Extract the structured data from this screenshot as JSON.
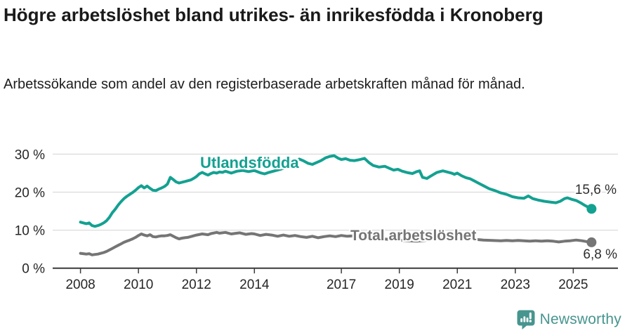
{
  "header": {
    "title": "Högre arbetslöshet bland utrikes- än inrikesfödda i Kronoberg",
    "subtitle": "Arbetssökande som andel av den registerbaserade arbetskraften månad för månad."
  },
  "chart_data": {
    "type": "line",
    "title": "Högre arbetslöshet bland utrikes- än inrikesfödda i Kronoberg",
    "subtitle": "Arbetssökande som andel av den registerbaserade arbetskraften månad för månad.",
    "xlabel": "",
    "ylabel": "",
    "unit": "%",
    "grid": true,
    "xlim": [
      2007.5,
      2026.1
    ],
    "ylim": [
      0,
      31.5
    ],
    "x_axis": {
      "ticks": [
        2008,
        2010,
        2012,
        2014,
        2017,
        2019,
        2021,
        2023,
        2025
      ]
    },
    "y_axis": {
      "ticks": [
        0,
        10,
        20,
        30
      ],
      "suffix": " %"
    },
    "series": [
      {
        "name": "Utlandsfödda",
        "color": "#13a191",
        "end_value": 15.6,
        "end_label": "15,6 %",
        "points": [
          [
            2008.0,
            12.1
          ],
          [
            2008.1,
            11.9
          ],
          [
            2008.2,
            11.7
          ],
          [
            2008.3,
            11.9
          ],
          [
            2008.4,
            11.2
          ],
          [
            2008.5,
            11.0
          ],
          [
            2008.6,
            11.2
          ],
          [
            2008.7,
            11.5
          ],
          [
            2008.8,
            11.9
          ],
          [
            2008.9,
            12.5
          ],
          [
            2009.0,
            13.4
          ],
          [
            2009.1,
            14.6
          ],
          [
            2009.2,
            15.5
          ],
          [
            2009.3,
            16.6
          ],
          [
            2009.4,
            17.5
          ],
          [
            2009.5,
            18.3
          ],
          [
            2009.6,
            18.9
          ],
          [
            2009.7,
            19.4
          ],
          [
            2009.8,
            19.9
          ],
          [
            2009.9,
            20.5
          ],
          [
            2010.0,
            21.2
          ],
          [
            2010.1,
            21.7
          ],
          [
            2010.2,
            21.1
          ],
          [
            2010.3,
            21.6
          ],
          [
            2010.4,
            21.0
          ],
          [
            2010.5,
            20.5
          ],
          [
            2010.6,
            20.4
          ],
          [
            2010.7,
            20.8
          ],
          [
            2010.8,
            21.1
          ],
          [
            2010.9,
            21.5
          ],
          [
            2011.0,
            22.1
          ],
          [
            2011.1,
            23.9
          ],
          [
            2011.2,
            23.3
          ],
          [
            2011.3,
            22.7
          ],
          [
            2011.4,
            22.4
          ],
          [
            2011.5,
            22.6
          ],
          [
            2011.6,
            22.8
          ],
          [
            2011.7,
            23.0
          ],
          [
            2011.8,
            23.2
          ],
          [
            2011.9,
            23.6
          ],
          [
            2012.0,
            24.1
          ],
          [
            2012.1,
            24.8
          ],
          [
            2012.2,
            25.2
          ],
          [
            2012.3,
            24.8
          ],
          [
            2012.4,
            24.5
          ],
          [
            2012.5,
            24.9
          ],
          [
            2012.6,
            25.2
          ],
          [
            2012.7,
            25.0
          ],
          [
            2012.8,
            25.3
          ],
          [
            2012.9,
            25.2
          ],
          [
            2013.0,
            25.5
          ],
          [
            2013.2,
            25.0
          ],
          [
            2013.4,
            25.5
          ],
          [
            2013.6,
            25.7
          ],
          [
            2013.8,
            25.4
          ],
          [
            2014.0,
            25.7
          ],
          [
            2014.2,
            25.1
          ],
          [
            2014.35,
            24.8
          ],
          [
            2014.5,
            25.2
          ],
          [
            2014.7,
            25.6
          ],
          [
            2014.9,
            26.0
          ],
          [
            2015.0,
            26.3
          ],
          [
            2015.2,
            27.2
          ],
          [
            2015.4,
            28.1
          ],
          [
            2015.55,
            28.7
          ],
          [
            2015.7,
            28.2
          ],
          [
            2015.85,
            27.6
          ],
          [
            2016.0,
            27.3
          ],
          [
            2016.15,
            27.8
          ],
          [
            2016.3,
            28.3
          ],
          [
            2016.45,
            29.0
          ],
          [
            2016.6,
            29.4
          ],
          [
            2016.75,
            29.6
          ],
          [
            2016.9,
            28.9
          ],
          [
            2017.0,
            28.6
          ],
          [
            2017.15,
            28.8
          ],
          [
            2017.3,
            28.4
          ],
          [
            2017.45,
            28.3
          ],
          [
            2017.6,
            28.5
          ],
          [
            2017.8,
            28.9
          ],
          [
            2017.95,
            27.8
          ],
          [
            2018.1,
            27.0
          ],
          [
            2018.3,
            26.6
          ],
          [
            2018.5,
            26.8
          ],
          [
            2018.65,
            26.3
          ],
          [
            2018.8,
            25.8
          ],
          [
            2018.95,
            26.0
          ],
          [
            2019.1,
            25.5
          ],
          [
            2019.3,
            25.1
          ],
          [
            2019.45,
            24.9
          ],
          [
            2019.6,
            25.4
          ],
          [
            2019.7,
            25.6
          ],
          [
            2019.8,
            23.9
          ],
          [
            2019.95,
            23.6
          ],
          [
            2020.1,
            24.3
          ],
          [
            2020.3,
            25.2
          ],
          [
            2020.5,
            25.6
          ],
          [
            2020.65,
            25.3
          ],
          [
            2020.8,
            25.0
          ],
          [
            2020.9,
            24.7
          ],
          [
            2021.0,
            25.0
          ],
          [
            2021.15,
            24.3
          ],
          [
            2021.3,
            23.8
          ],
          [
            2021.45,
            23.5
          ],
          [
            2021.6,
            22.9
          ],
          [
            2021.75,
            22.3
          ],
          [
            2021.9,
            21.7
          ],
          [
            2022.1,
            20.9
          ],
          [
            2022.3,
            20.4
          ],
          [
            2022.5,
            19.8
          ],
          [
            2022.7,
            19.4
          ],
          [
            2022.9,
            18.8
          ],
          [
            2023.1,
            18.5
          ],
          [
            2023.3,
            18.4
          ],
          [
            2023.45,
            19.0
          ],
          [
            2023.6,
            18.3
          ],
          [
            2023.8,
            17.9
          ],
          [
            2024.0,
            17.6
          ],
          [
            2024.2,
            17.4
          ],
          [
            2024.4,
            17.2
          ],
          [
            2024.55,
            17.6
          ],
          [
            2024.7,
            18.3
          ],
          [
            2024.8,
            18.5
          ],
          [
            2024.95,
            18.1
          ],
          [
            2025.1,
            17.8
          ],
          [
            2025.25,
            17.2
          ],
          [
            2025.4,
            16.5
          ],
          [
            2025.55,
            15.9
          ],
          [
            2025.63,
            15.6
          ]
        ]
      },
      {
        "name": "Total arbetslöshet",
        "color": "#757575",
        "end_value": 6.8,
        "end_label": "6,8 %",
        "points": [
          [
            2008.0,
            3.9
          ],
          [
            2008.1,
            3.8
          ],
          [
            2008.2,
            3.7
          ],
          [
            2008.3,
            3.8
          ],
          [
            2008.4,
            3.5
          ],
          [
            2008.5,
            3.6
          ],
          [
            2008.6,
            3.7
          ],
          [
            2008.7,
            3.9
          ],
          [
            2008.8,
            4.1
          ],
          [
            2008.9,
            4.4
          ],
          [
            2009.0,
            4.8
          ],
          [
            2009.1,
            5.2
          ],
          [
            2009.2,
            5.6
          ],
          [
            2009.3,
            6.0
          ],
          [
            2009.4,
            6.4
          ],
          [
            2009.5,
            6.8
          ],
          [
            2009.6,
            7.1
          ],
          [
            2009.7,
            7.4
          ],
          [
            2009.8,
            7.7
          ],
          [
            2009.9,
            8.1
          ],
          [
            2010.0,
            8.6
          ],
          [
            2010.1,
            9.0
          ],
          [
            2010.2,
            8.7
          ],
          [
            2010.3,
            8.5
          ],
          [
            2010.4,
            8.8
          ],
          [
            2010.5,
            8.3
          ],
          [
            2010.6,
            8.2
          ],
          [
            2010.7,
            8.4
          ],
          [
            2010.8,
            8.5
          ],
          [
            2010.9,
            8.5
          ],
          [
            2011.0,
            8.6
          ],
          [
            2011.1,
            8.8
          ],
          [
            2011.2,
            8.4
          ],
          [
            2011.3,
            8.0
          ],
          [
            2011.4,
            7.7
          ],
          [
            2011.5,
            7.9
          ],
          [
            2011.6,
            8.0
          ],
          [
            2011.7,
            8.1
          ],
          [
            2011.8,
            8.3
          ],
          [
            2011.9,
            8.5
          ],
          [
            2012.0,
            8.7
          ],
          [
            2012.2,
            9.0
          ],
          [
            2012.4,
            8.8
          ],
          [
            2012.5,
            9.1
          ],
          [
            2012.7,
            9.4
          ],
          [
            2012.8,
            9.2
          ],
          [
            2013.0,
            9.4
          ],
          [
            2013.2,
            9.0
          ],
          [
            2013.4,
            9.2
          ],
          [
            2013.5,
            9.3
          ],
          [
            2013.7,
            8.9
          ],
          [
            2013.9,
            9.1
          ],
          [
            2014.0,
            9.0
          ],
          [
            2014.2,
            8.6
          ],
          [
            2014.4,
            8.9
          ],
          [
            2014.6,
            8.7
          ],
          [
            2014.8,
            8.4
          ],
          [
            2015.0,
            8.7
          ],
          [
            2015.2,
            8.4
          ],
          [
            2015.4,
            8.6
          ],
          [
            2015.6,
            8.3
          ],
          [
            2015.8,
            8.1
          ],
          [
            2016.0,
            8.4
          ],
          [
            2016.2,
            8.0
          ],
          [
            2016.4,
            8.3
          ],
          [
            2016.6,
            8.5
          ],
          [
            2016.8,
            8.3
          ],
          [
            2017.0,
            8.6
          ],
          [
            2017.2,
            8.4
          ],
          [
            2017.4,
            8.5
          ],
          [
            2017.6,
            8.3
          ],
          [
            2017.8,
            8.1
          ],
          [
            2018.0,
            8.0
          ],
          [
            2018.3,
            7.8
          ],
          [
            2018.6,
            7.6
          ],
          [
            2019.0,
            7.4
          ],
          [
            2019.3,
            7.2
          ],
          [
            2019.6,
            7.1
          ],
          [
            2019.9,
            7.3
          ],
          [
            2020.2,
            8.0
          ],
          [
            2020.4,
            8.6
          ],
          [
            2020.6,
            8.5
          ],
          [
            2020.8,
            8.3
          ],
          [
            2021.0,
            8.2
          ],
          [
            2021.3,
            7.9
          ],
          [
            2021.6,
            7.6
          ],
          [
            2021.9,
            7.4
          ],
          [
            2022.2,
            7.3
          ],
          [
            2022.5,
            7.2
          ],
          [
            2022.7,
            7.3
          ],
          [
            2022.9,
            7.2
          ],
          [
            2023.1,
            7.3
          ],
          [
            2023.3,
            7.2
          ],
          [
            2023.5,
            7.1
          ],
          [
            2023.7,
            7.2
          ],
          [
            2023.9,
            7.1
          ],
          [
            2024.1,
            7.2
          ],
          [
            2024.3,
            7.1
          ],
          [
            2024.5,
            6.9
          ],
          [
            2024.7,
            7.1
          ],
          [
            2024.9,
            7.2
          ],
          [
            2025.1,
            7.4
          ],
          [
            2025.3,
            7.2
          ],
          [
            2025.45,
            7.0
          ],
          [
            2025.63,
            6.8
          ]
        ]
      }
    ],
    "legend_position": "inline"
  },
  "footer": {
    "brand": "Newsworthy"
  },
  "colors": {
    "teal": "#13a191",
    "gray": "#757575",
    "grid": "#dbdbdb",
    "axis": "#3a3a3a",
    "tick_text": "#262626",
    "logo_teal": "#47958f",
    "end_label_text": "#2e2e2e"
  }
}
